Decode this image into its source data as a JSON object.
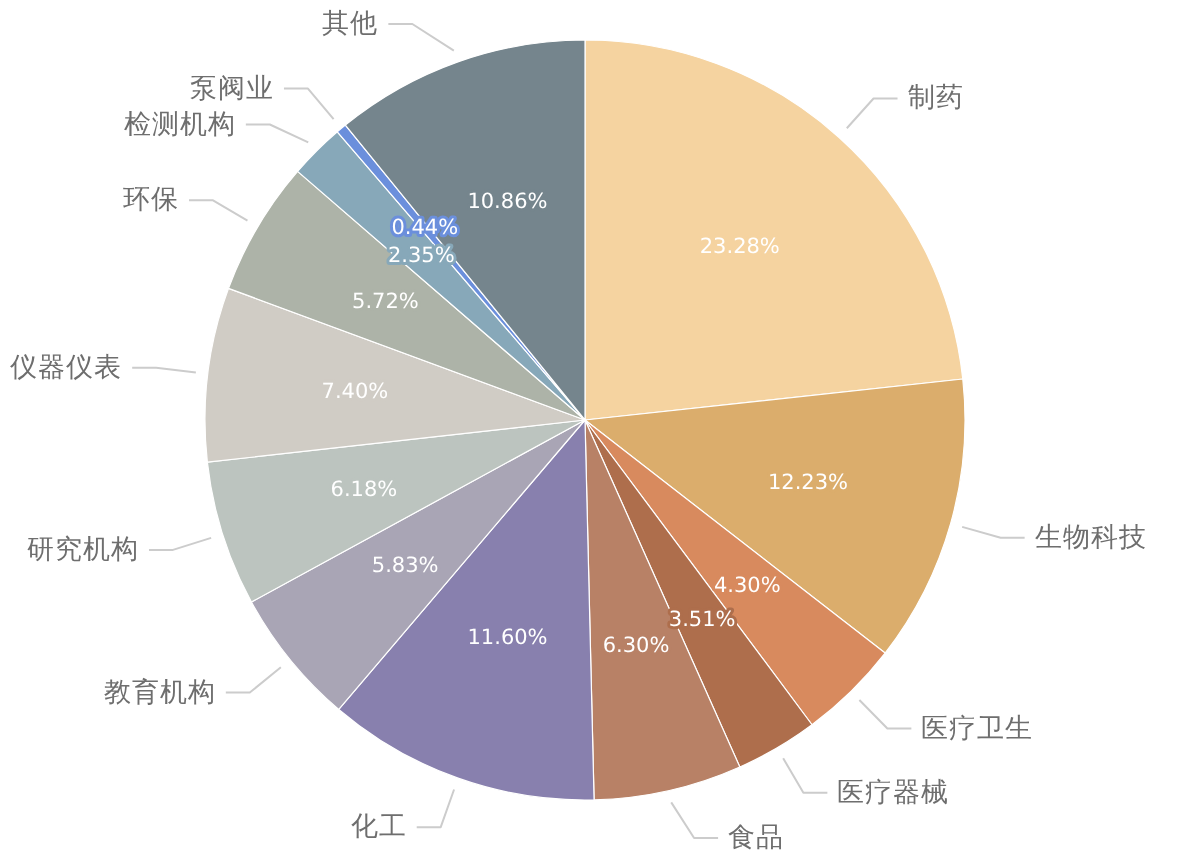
{
  "chart_data": {
    "type": "pie",
    "categories": [
      "制药",
      "生物科技",
      "医疗卫生",
      "医疗器械",
      "食品",
      "化工",
      "教育机构",
      "研究机构",
      "仪器仪表",
      "环保",
      "检测机构",
      "泵阀业",
      "其他"
    ],
    "values": [
      23.28,
      12.23,
      4.3,
      3.51,
      6.3,
      11.6,
      5.83,
      6.18,
      7.4,
      5.72,
      2.35,
      0.44,
      10.86
    ],
    "value_labels": [
      "23.28%",
      "12.23%",
      "4.30%",
      "3.51%",
      "6.30%",
      "11.60%",
      "5.83%",
      "6.18%",
      "7.40%",
      "5.72%",
      "2.35%",
      "0.44%",
      "10.86%"
    ],
    "colors": [
      "#f5d3a0",
      "#dbad6c",
      "#d88a5e",
      "#ae6e4c",
      "#b88166",
      "#8880ae",
      "#a9a5b5",
      "#bcc4bf",
      "#d0ccc5",
      "#adb3a8",
      "#87a8b9",
      "#6b8fdc",
      "#75858d"
    ]
  }
}
